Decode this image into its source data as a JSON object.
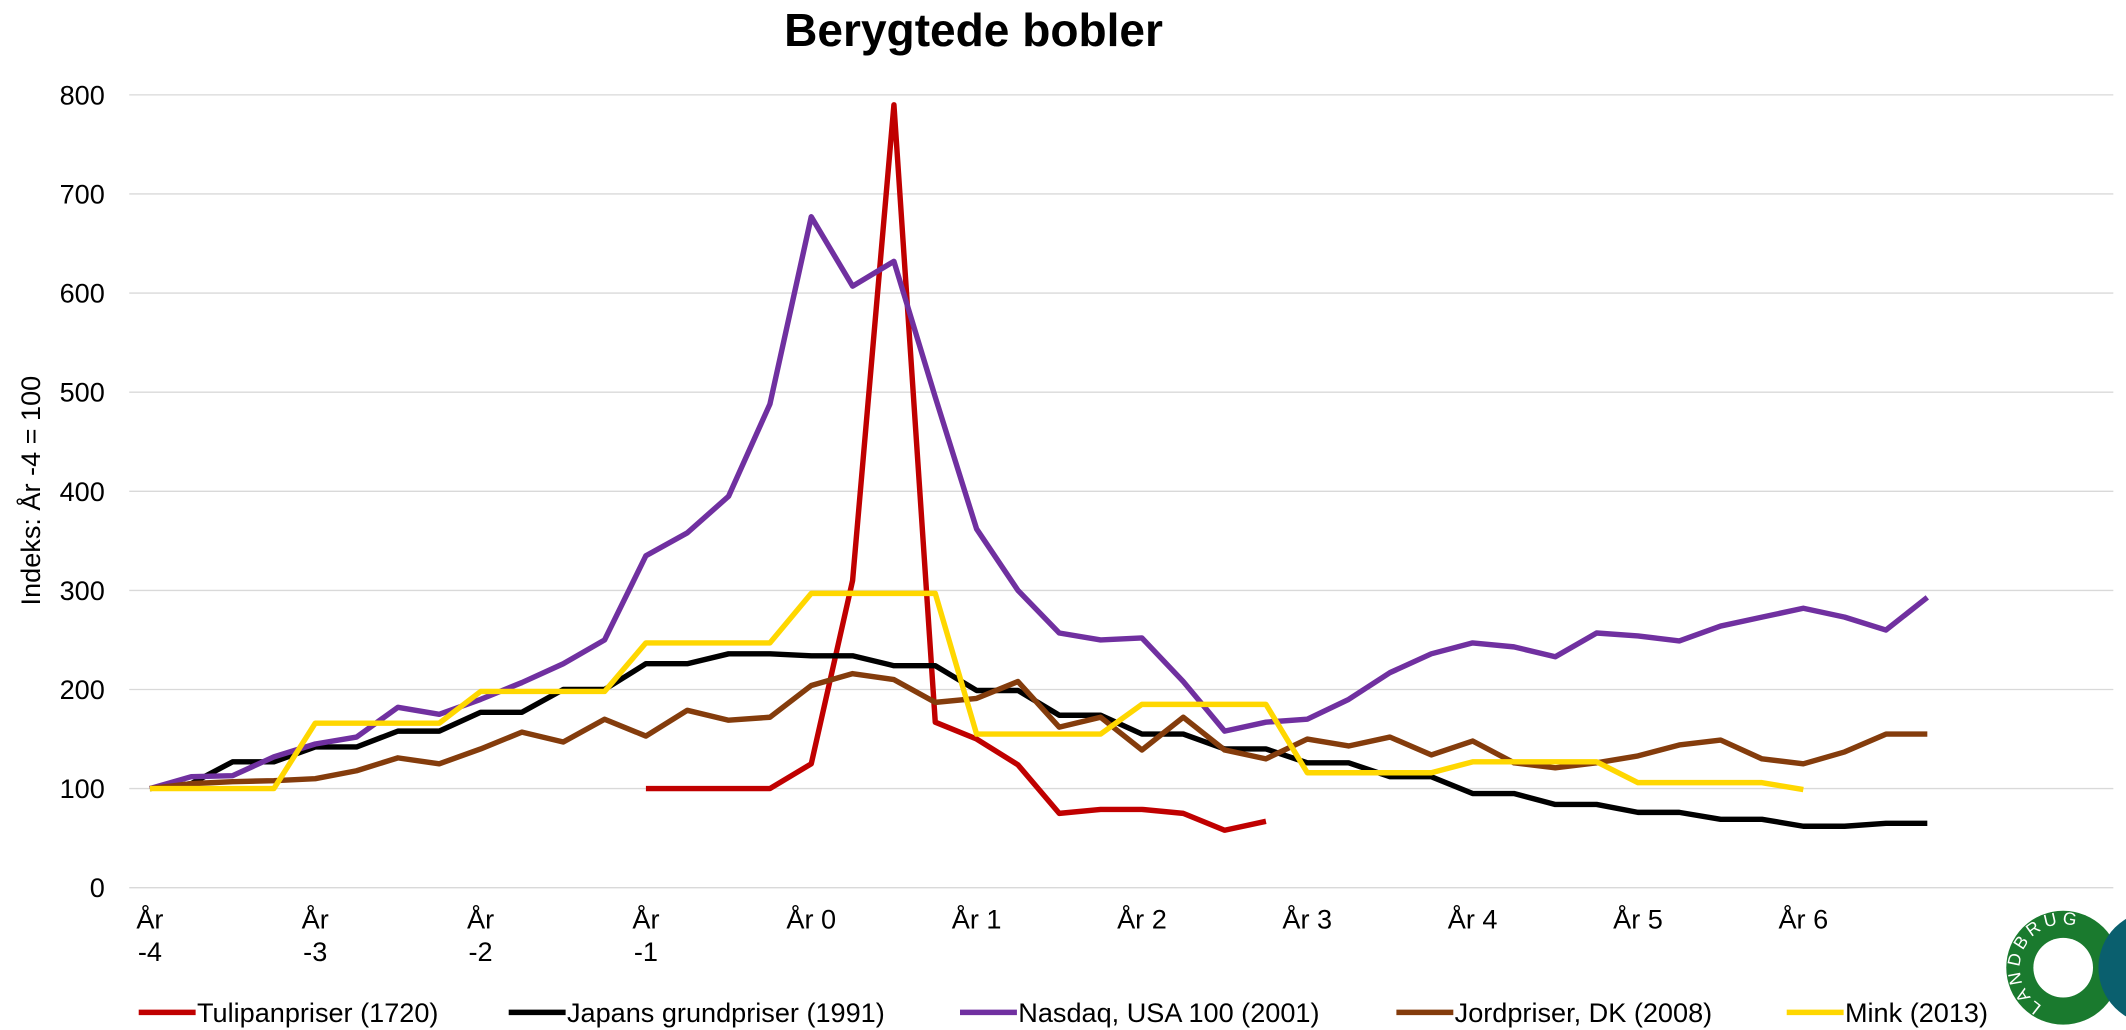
{
  "chart_data": {
    "type": "line",
    "title": "Berygtede bobler",
    "y_label": "Indeks: År -4 = 100",
    "x": [
      -4,
      -3.75,
      -3.5,
      -3.25,
      -3,
      -2.75,
      -2.5,
      -2.25,
      -2,
      -1.75,
      -1.5,
      -1.25,
      -1,
      -0.75,
      -0.5,
      -0.25,
      0,
      0.25,
      0.5,
      0.75,
      1,
      1.25,
      1.5,
      1.75,
      2,
      2.25,
      2.5,
      2.75,
      3,
      3.25,
      3.5,
      3.75,
      4,
      4.25,
      4.5,
      4.75,
      5,
      5.25,
      5.5,
      5.75,
      6,
      6.25,
      6.5,
      6.75
    ],
    "series": [
      {
        "name": "Tulipanpriser (1720)",
        "color": "#c00000",
        "values": [
          null,
          null,
          null,
          null,
          null,
          null,
          null,
          null,
          null,
          null,
          null,
          null,
          100,
          100,
          100,
          100,
          125,
          310,
          790,
          167,
          150,
          124,
          75,
          79,
          79,
          75,
          58,
          67,
          null,
          null,
          null,
          null,
          null,
          null,
          null,
          null,
          null,
          null,
          null,
          null,
          null,
          null,
          null,
          null
        ]
      },
      {
        "name": "Japans grundpriser (1991)",
        "color": "#000000",
        "values": [
          100,
          105,
          127,
          127,
          142,
          142,
          158,
          158,
          177,
          177,
          200,
          200,
          226,
          226,
          236,
          236,
          234,
          234,
          224,
          224,
          199,
          199,
          174,
          174,
          155,
          155,
          140,
          140,
          126,
          126,
          112,
          112,
          95,
          95,
          84,
          84,
          76,
          76,
          69,
          69,
          62,
          62,
          65,
          65
        ]
      },
      {
        "name": "Nasdaq, USA 100 (2001)",
        "color": "#7030a0",
        "values": [
          100,
          112,
          113,
          132,
          145,
          152,
          182,
          175,
          190,
          207,
          226,
          250,
          335,
          358,
          395,
          488,
          677,
          607,
          632,
          495,
          362,
          300,
          257,
          250,
          252,
          208,
          158,
          167,
          170,
          190,
          217,
          236,
          247,
          243,
          233,
          257,
          254,
          249,
          264,
          273,
          282,
          273,
          260,
          293
        ]
      },
      {
        "name": "Jordpriser, DK (2008)",
        "color": "#843c0c",
        "values": [
          100,
          105,
          107,
          108,
          110,
          118,
          131,
          125,
          140,
          157,
          147,
          170,
          153,
          179,
          169,
          172,
          204,
          216,
          210,
          187,
          191,
          208,
          162,
          172,
          139,
          172,
          139,
          130,
          150,
          143,
          152,
          134,
          148,
          126,
          121,
          126,
          133,
          144,
          149,
          130,
          125,
          137,
          155,
          155
        ]
      },
      {
        "name": "Mink (2013)",
        "color": "#ffd700",
        "values": [
          100,
          100,
          100,
          100,
          166,
          166,
          166,
          166,
          198,
          198,
          198,
          198,
          247,
          247,
          247,
          247,
          297,
          297,
          297,
          297,
          155,
          155,
          155,
          155,
          185,
          185,
          185,
          185,
          116,
          116,
          116,
          116,
          127,
          127,
          127,
          127,
          106,
          106,
          106,
          106,
          99,
          null,
          null,
          null
        ]
      }
    ],
    "xlim": [
      -4.125,
      7.875
    ],
    "xticks": [
      {
        "value": -4,
        "label": "År -4"
      },
      {
        "value": -3,
        "label": "År -3"
      },
      {
        "value": -2,
        "label": "År -2"
      },
      {
        "value": -1,
        "label": "År -1"
      },
      {
        "value": 0,
        "label": "År 0"
      },
      {
        "value": 1,
        "label": "År 1"
      },
      {
        "value": 2,
        "label": "År 2"
      },
      {
        "value": 3,
        "label": "År 3"
      },
      {
        "value": 4,
        "label": "År 4"
      },
      {
        "value": 5,
        "label": "År 5"
      },
      {
        "value": 6,
        "label": "År 6"
      }
    ],
    "ylim": [
      0,
      800
    ],
    "yticks": [
      0,
      100,
      200,
      300,
      400,
      500,
      600,
      700,
      800
    ],
    "grid": true,
    "legend": "bottom",
    "logo": "LANDBRUG"
  }
}
